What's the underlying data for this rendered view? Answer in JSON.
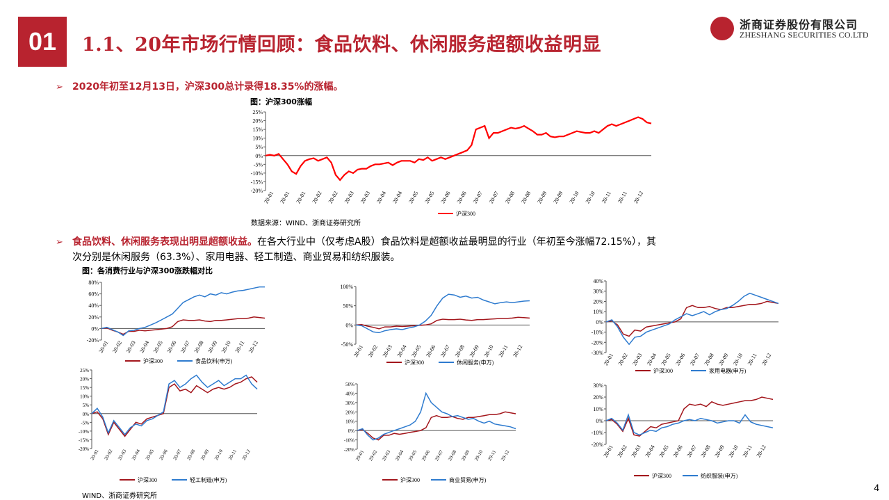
{
  "header": {
    "badge": "01",
    "title": "1.1、20年市场行情回顾：食品饮料、休闲服务超额收益明显"
  },
  "logo": {
    "cn": "浙商证券股份有限公司",
    "en": "ZHESHANG SECURITIES CO.LTD"
  },
  "bullet1": {
    "text": "2020年初至12月13日，沪深300总计录得18.35%的涨幅。"
  },
  "fig1": {
    "caption": "图：沪深300涨幅",
    "source": "数据来源：WIND、浙商证券研究所"
  },
  "bullet2": {
    "red": "食品饮料、休闲服务表现出明显超额收益。",
    "rest": "在各大行业中（仅考虑A股）食品饮料是超额收益最明显的行业（年初至今涨幅72.15%），其",
    "line2": "次分别是休闲服务（63.3%）、家用电器、轻工制造、商业贸易和纺织服装。"
  },
  "fig2": {
    "caption": "图：各消费行业与沪深300涨跌幅对比",
    "source": "WIND、浙商证券研究所"
  },
  "page_number": "4",
  "colors": {
    "brand": "#b8232f",
    "hs300_main": "#ff0000",
    "hs300": "#a3161c",
    "industry": "#2e7bcf"
  },
  "chart_data": [
    {
      "type": "line",
      "ylim": [
        -20,
        25
      ],
      "yticks": [
        "-20%",
        "-15%",
        "-10%",
        "-5%",
        "0%",
        "5%",
        "10%",
        "15%",
        "20%",
        "25%"
      ],
      "xticks": [
        "20-01",
        "20-01",
        "20-01",
        "20-02",
        "20-02",
        "20-03",
        "20-03",
        "20-04",
        "20-04",
        "20-05",
        "20-05",
        "20-06",
        "20-06",
        "20-07",
        "20-07",
        "20-08",
        "20-08",
        "20-09",
        "20-09",
        "20-10",
        "20-10",
        "20-11",
        "20-11",
        "20-12"
      ],
      "series": [
        {
          "name": "沪深300",
          "values": [
            0,
            0.5,
            0,
            1,
            -2,
            -5,
            -9,
            -10.5,
            -6,
            -3,
            -2,
            -1.5,
            -3,
            -2,
            -1,
            -4,
            -11,
            -14,
            -11,
            -9,
            -10,
            -8,
            -7.5,
            -7.5,
            -6,
            -5,
            -5,
            -4.5,
            -4,
            -5.5,
            -4,
            -3,
            -3,
            -3,
            -4,
            -2,
            -2.5,
            -1,
            -3,
            -2,
            -1,
            -2,
            -1,
            0,
            1,
            2,
            3,
            6,
            15,
            16,
            17,
            10,
            13,
            13,
            14,
            15,
            16,
            15.5,
            16,
            17,
            15.5,
            14,
            12,
            12,
            13,
            11,
            10.5,
            11,
            11,
            12,
            13,
            14,
            13.5,
            13,
            13,
            14,
            13,
            15,
            17,
            18,
            17,
            18,
            19,
            20,
            21,
            22,
            21,
            19,
            18.4
          ]
        }
      ]
    },
    {
      "type": "line",
      "ylim": [
        -20,
        80
      ],
      "yticks": [
        "-20%",
        "0%",
        "20%",
        "40%",
        "60%",
        "80%"
      ],
      "xticks": [
        "20-01",
        "20-02",
        "20-03",
        "20-04",
        "20-05",
        "20-06",
        "20-07",
        "20-08",
        "20-09",
        "20-10",
        "20-11",
        "20-12"
      ],
      "series": [
        {
          "name": "沪深300",
          "values": [
            0,
            1,
            -3,
            -6,
            -10,
            -5,
            -5,
            -3,
            -4,
            -3,
            -2,
            -1,
            0,
            3,
            12,
            15,
            14,
            14,
            15,
            13,
            12,
            14,
            14,
            15,
            16,
            17,
            17,
            18,
            20,
            19,
            18
          ]
        },
        {
          "name": "食品饮料(申万)",
          "values": [
            0,
            2,
            -2,
            -6,
            -12,
            -4,
            -3,
            0,
            2,
            6,
            10,
            15,
            20,
            25,
            35,
            45,
            50,
            55,
            58,
            55,
            60,
            58,
            62,
            60,
            63,
            65,
            66,
            68,
            70,
            72,
            72
          ]
        }
      ]
    },
    {
      "type": "line",
      "ylim": [
        -50,
        100
      ],
      "yticks": [
        "-50%",
        "0%",
        "50%",
        "100%"
      ],
      "xticks": [
        "20-01",
        "20-02",
        "20-03",
        "20-04",
        "20-05",
        "20-06",
        "20-07",
        "20-08",
        "20-09",
        "20-10",
        "20-11",
        "20-12"
      ],
      "series": [
        {
          "name": "沪深300",
          "values": [
            0,
            1,
            -3,
            -6,
            -10,
            -5,
            -5,
            -3,
            -4,
            -3,
            -2,
            -1,
            0,
            3,
            12,
            15,
            14,
            14,
            15,
            13,
            12,
            14,
            14,
            15,
            16,
            17,
            17,
            18,
            20,
            19,
            18
          ]
        },
        {
          "name": "休闲服务(申万)",
          "values": [
            0,
            -2,
            -10,
            -18,
            -20,
            -15,
            -12,
            -10,
            -12,
            -8,
            -5,
            0,
            10,
            25,
            50,
            70,
            80,
            78,
            72,
            75,
            70,
            72,
            65,
            60,
            55,
            58,
            60,
            58,
            60,
            62,
            63
          ]
        }
      ]
    },
    {
      "type": "line",
      "ylim": [
        -30,
        40
      ],
      "yticks": [
        "-30%",
        "-20%",
        "-10%",
        "0%",
        "10%",
        "20%",
        "30%",
        "40%"
      ],
      "xticks": [
        "20-01",
        "20-02",
        "20-03",
        "20-04",
        "20-05",
        "20-06",
        "20-07",
        "20-08",
        "20-09",
        "20-10",
        "20-11",
        "20-12"
      ],
      "series": [
        {
          "name": "沪深300",
          "values": [
            0,
            1,
            -3,
            -12,
            -14,
            -8,
            -9,
            -5,
            -4,
            -3,
            -2,
            -1,
            0,
            3,
            14,
            16,
            14,
            14,
            15,
            13,
            12,
            14,
            14,
            15,
            16,
            17,
            17,
            18,
            20,
            19,
            18
          ]
        },
        {
          "name": "家用电器(申万)",
          "values": [
            0,
            2,
            -5,
            -15,
            -22,
            -15,
            -14,
            -10,
            -8,
            -6,
            -4,
            -2,
            2,
            5,
            8,
            6,
            8,
            10,
            7,
            10,
            12,
            13,
            16,
            20,
            25,
            28,
            26,
            24,
            22,
            20,
            18
          ]
        }
      ]
    },
    {
      "type": "line",
      "ylim": [
        -20,
        25
      ],
      "yticks": [
        "-20%",
        "-15%",
        "-10%",
        "-5%",
        "0%",
        "5%",
        "10%",
        "15%",
        "20%",
        "25%"
      ],
      "xticks": [
        "20-01",
        "20-02",
        "20-03",
        "20-04",
        "20-05",
        "20-06",
        "20-07",
        "20-08",
        "20-09",
        "20-10",
        "20-11",
        "20-12"
      ],
      "series": [
        {
          "name": "沪深300",
          "values": [
            0,
            1,
            -3,
            -12,
            -5,
            -9,
            -13,
            -9,
            -5,
            -6,
            -3,
            -2,
            -1,
            0,
            15,
            17,
            13,
            14,
            12,
            16,
            14,
            12,
            14,
            15,
            14,
            15,
            17,
            18,
            20,
            21,
            18
          ]
        },
        {
          "name": "轻工制造(申万)",
          "values": [
            0,
            3,
            -2,
            -11,
            -4,
            -8,
            -12,
            -8,
            -6,
            -7,
            -4,
            -3,
            -1,
            1,
            17,
            19,
            15,
            17,
            20,
            22,
            18,
            15,
            17,
            19,
            16,
            18,
            20,
            20,
            22,
            17,
            14
          ]
        }
      ]
    },
    {
      "type": "line",
      "ylim": [
        -20,
        50
      ],
      "yticks": [
        "-20%",
        "-10%",
        "0%",
        "10%",
        "20%",
        "30%",
        "40%",
        "50%"
      ],
      "xticks": [
        "20-01",
        "20-02",
        "20-03",
        "20-04",
        "20-05",
        "20-06",
        "20-07",
        "20-08",
        "20-09",
        "20-10",
        "20-11",
        "20-12"
      ],
      "series": [
        {
          "name": "沪深300",
          "values": [
            0,
            1,
            -3,
            -8,
            -10,
            -5,
            -5,
            -3,
            -4,
            -3,
            -2,
            -1,
            0,
            3,
            14,
            16,
            14,
            14,
            15,
            13,
            12,
            14,
            14,
            15,
            16,
            17,
            17,
            18,
            20,
            19,
            18
          ]
        },
        {
          "name": "商业贸易(申万)",
          "values": [
            0,
            2,
            -5,
            -10,
            -8,
            -4,
            -2,
            0,
            2,
            4,
            6,
            10,
            20,
            40,
            30,
            25,
            20,
            18,
            15,
            16,
            14,
            12,
            13,
            10,
            8,
            10,
            7,
            6,
            5,
            4,
            2
          ]
        }
      ]
    },
    {
      "type": "line",
      "ylim": [
        -20,
        30
      ],
      "yticks": [
        "-20%",
        "-10%",
        "0%",
        "10%",
        "20%",
        "30%"
      ],
      "xticks": [
        "20-01",
        "20-02",
        "20-03",
        "20-04",
        "20-05",
        "20-06",
        "20-07",
        "20-08",
        "20-09",
        "20-10",
        "20-11",
        "20-12"
      ],
      "series": [
        {
          "name": "沪深300",
          "values": [
            0,
            1,
            -3,
            -9,
            2,
            -12,
            -13,
            -9,
            -5,
            -6,
            -3,
            -2,
            -1,
            0,
            10,
            14,
            13,
            14,
            12,
            16,
            14,
            13,
            14,
            15,
            16,
            17,
            17,
            18,
            20,
            19,
            18
          ]
        },
        {
          "name": "纺织服装(申万)",
          "values": [
            0,
            2,
            -2,
            -8,
            5,
            -10,
            -12,
            -10,
            -8,
            -9,
            -6,
            -5,
            -3,
            -2,
            0,
            1,
            0,
            2,
            1,
            0,
            -2,
            -1,
            0,
            0,
            -2,
            5,
            -1,
            -3,
            -4,
            -5,
            -6
          ]
        }
      ]
    }
  ]
}
